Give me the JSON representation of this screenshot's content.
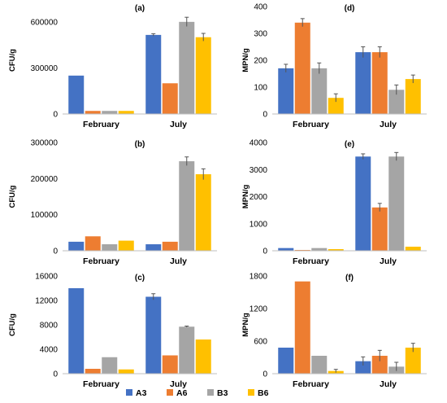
{
  "figure": {
    "series_names": [
      "A3",
      "A6",
      "B3",
      "B6"
    ],
    "colors": {
      "A3": "#4472C4",
      "A6": "#ED7D31",
      "B3": "#A5A5A5",
      "B6": "#FFC000"
    }
  },
  "chart_data": [
    {
      "type": "bar",
      "title": "(a)",
      "ylabel": "CFU/g",
      "categories": [
        "February",
        "July"
      ],
      "ylim": [
        0,
        700000
      ],
      "yticks": [
        "0",
        "300000",
        "600000"
      ],
      "ytick_values": [
        0,
        300000,
        600000
      ],
      "series": [
        {
          "name": "A3",
          "values": [
            250000,
            515000
          ],
          "errors": [
            0,
            8000
          ]
        },
        {
          "name": "A6",
          "values": [
            20000,
            200000
          ],
          "errors": [
            0,
            0
          ]
        },
        {
          "name": "B3",
          "values": [
            20000,
            600000
          ],
          "errors": [
            0,
            30000
          ]
        },
        {
          "name": "B6",
          "values": [
            20000,
            500000
          ],
          "errors": [
            0,
            25000
          ]
        }
      ]
    },
    {
      "type": "bar",
      "title": "(d)",
      "ylabel": "MPN/g",
      "categories": [
        "February",
        "July"
      ],
      "ylim": [
        0,
        400
      ],
      "yticks": [
        "0",
        "100",
        "200",
        "300",
        "400"
      ],
      "ytick_values": [
        0,
        100,
        200,
        300,
        400
      ],
      "series": [
        {
          "name": "A3",
          "values": [
            170,
            230
          ],
          "errors": [
            15,
            20
          ]
        },
        {
          "name": "A6",
          "values": [
            340,
            230
          ],
          "errors": [
            15,
            20
          ]
        },
        {
          "name": "B3",
          "values": [
            170,
            90
          ],
          "errors": [
            20,
            18
          ]
        },
        {
          "name": "B6",
          "values": [
            60,
            130
          ],
          "errors": [
            15,
            15
          ]
        }
      ]
    },
    {
      "type": "bar",
      "title": "(b)",
      "ylabel": "CFU/g",
      "categories": [
        "February",
        "July"
      ],
      "ylim": [
        0,
        300000
      ],
      "yticks": [
        "0",
        "100000",
        "200000",
        "300000"
      ],
      "ytick_values": [
        0,
        100000,
        200000,
        300000
      ],
      "series": [
        {
          "name": "A3",
          "values": [
            25000,
            18000
          ],
          "errors": [
            0,
            0
          ]
        },
        {
          "name": "A6",
          "values": [
            40000,
            25000
          ],
          "errors": [
            0,
            0
          ]
        },
        {
          "name": "B3",
          "values": [
            18000,
            248000
          ],
          "errors": [
            0,
            12000
          ]
        },
        {
          "name": "B6",
          "values": [
            28000,
            212000
          ],
          "errors": [
            0,
            15000
          ]
        }
      ]
    },
    {
      "type": "bar",
      "title": "(e)",
      "ylabel": "MPN/g",
      "categories": [
        "February",
        "July"
      ],
      "ylim": [
        0,
        4000
      ],
      "yticks": [
        "0",
        "1000",
        "2000",
        "3000",
        "4000"
      ],
      "ytick_values": [
        0,
        1000,
        2000,
        3000,
        4000
      ],
      "series": [
        {
          "name": "A3",
          "values": [
            100,
            3480
          ],
          "errors": [
            0,
            100
          ]
        },
        {
          "name": "A6",
          "values": [
            30,
            1600
          ],
          "errors": [
            0,
            150
          ]
        },
        {
          "name": "B3",
          "values": [
            100,
            3480
          ],
          "errors": [
            0,
            150
          ]
        },
        {
          "name": "B6",
          "values": [
            60,
            150
          ],
          "errors": [
            0,
            0
          ]
        }
      ]
    },
    {
      "type": "bar",
      "title": "(c)",
      "ylabel": "CFU/g",
      "categories": [
        "February",
        "July"
      ],
      "ylim": [
        0,
        16000
      ],
      "yticks": [
        "0",
        "4000",
        "8000",
        "12000",
        "16000"
      ],
      "ytick_values": [
        0,
        4000,
        8000,
        12000,
        16000
      ],
      "series": [
        {
          "name": "A3",
          "values": [
            14000,
            12600
          ],
          "errors": [
            0,
            500
          ]
        },
        {
          "name": "A6",
          "values": [
            800,
            3000
          ],
          "errors": [
            0,
            0
          ]
        },
        {
          "name": "B3",
          "values": [
            2700,
            7700
          ],
          "errors": [
            0,
            100
          ]
        },
        {
          "name": "B6",
          "values": [
            700,
            5600
          ],
          "errors": [
            0,
            0
          ]
        }
      ]
    },
    {
      "type": "bar",
      "title": "(f)",
      "ylabel": "MPN/g",
      "categories": [
        "February",
        "July"
      ],
      "ylim": [
        0,
        1800
      ],
      "yticks": [
        "0",
        "600",
        "1200",
        "1800"
      ],
      "ytick_values": [
        0,
        600,
        1200,
        1800
      ],
      "series": [
        {
          "name": "A3",
          "values": [
            480,
            230
          ],
          "errors": [
            0,
            80
          ]
        },
        {
          "name": "A6",
          "values": [
            1700,
            330
          ],
          "errors": [
            0,
            100
          ]
        },
        {
          "name": "B3",
          "values": [
            330,
            130
          ],
          "errors": [
            0,
            80
          ]
        },
        {
          "name": "B6",
          "values": [
            50,
            480
          ],
          "errors": [
            30,
            80
          ]
        }
      ]
    }
  ]
}
